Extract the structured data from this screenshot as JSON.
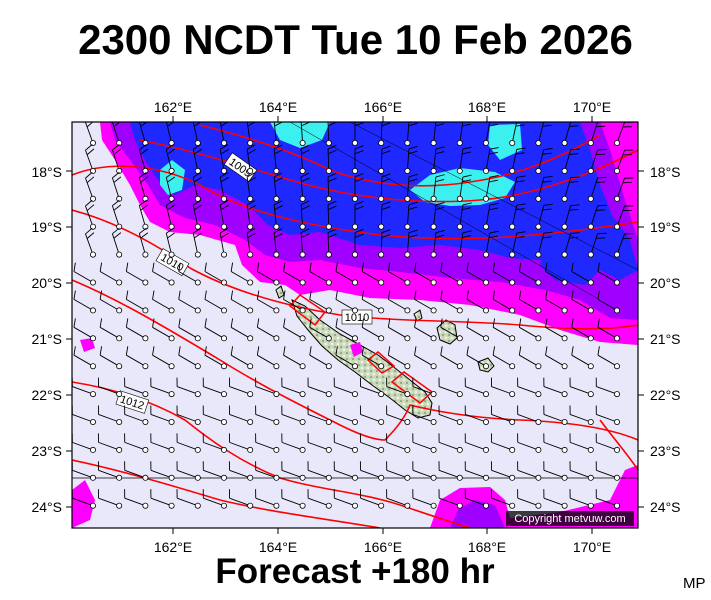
{
  "title": "2300 NCDT Tue 10 Feb 2026",
  "subtitle": "Forecast +180 hr",
  "corner_code": "MP",
  "copyright": "Copyright metvuw.com",
  "lon_labels": [
    "162°E",
    "164°E",
    "166°E",
    "168°E",
    "170°E"
  ],
  "lat_labels": [
    "18°S",
    "19°S",
    "20°S",
    "21°S",
    "22°S",
    "23°S",
    "24°S"
  ],
  "isobar_labels": [
    "1009",
    "1010",
    "1010",
    "1012"
  ],
  "colors": {
    "background_field": "#e8e8fa",
    "magenta": "#ff00ff",
    "violet": "#a000ff",
    "blue": "#1e28ff",
    "cyan": "#3cf0f0",
    "isobar": "#ff0000",
    "land": "#c8d8b8",
    "wind_barb": "#000000"
  },
  "icons": {
    "wind": "wind-barb-icon",
    "land": "island-shape"
  }
}
